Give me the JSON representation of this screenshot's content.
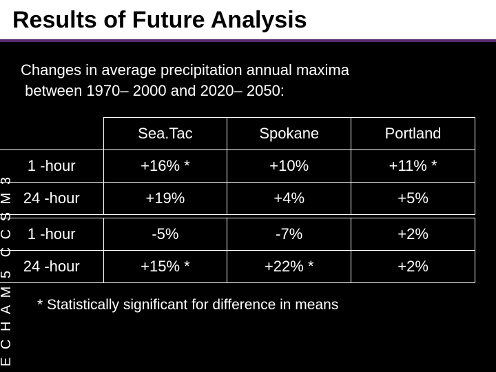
{
  "title": "Results of Future Analysis",
  "subtitle_line1": "Changes in average precipitation annual maxima",
  "subtitle_line2": "between 1970– 2000 and 2020– 2050:",
  "columns": [
    "Sea.Tac",
    "Spokane",
    "Portland"
  ],
  "model1_label": "C C S M 3",
  "model2_label": "E C H A M 5",
  "row1_label": "1 -hour",
  "row2_label": "24 -hour",
  "row3_label": "1 -hour",
  "row4_label": "24 -hour",
  "cells": {
    "r1c1": "+16% *",
    "r1c2": "+10%",
    "r1c3": "+11% *",
    "r2c1": "+19%",
    "r2c2": "+4%",
    "r2c3": "+5%",
    "r3c1": "-5%",
    "r3c2": "-7%",
    "r3c3": "+2%",
    "r4c1": "+15% *",
    "r4c2": "+22% *",
    "r4c3": "+2%"
  },
  "footnote": "* Statistically significant for difference in means",
  "colors": {
    "background": "#000000",
    "title_bg": "#ffffff",
    "title_text": "#000000",
    "accent": "#5a2a6e",
    "text": "#ffffff",
    "border": "#ffffff"
  },
  "fontsizes": {
    "title": 34,
    "subtitle": 22,
    "cell": 22,
    "footnote": 21,
    "vlabel": 20
  }
}
